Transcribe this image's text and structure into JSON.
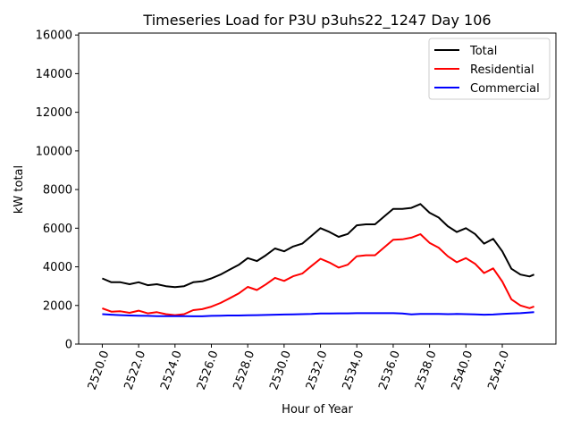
{
  "chart_data": {
    "type": "line",
    "title": "Timeseries Load for P3U p3uhs22_1247  Day 106",
    "xlabel": "Hour of Year",
    "ylabel": "kW total",
    "xlim": [
      2518.7,
      2544.95
    ],
    "ylim": [
      0,
      16100
    ],
    "xticks": [
      2520,
      2522,
      2524,
      2526,
      2528,
      2530,
      2532,
      2534,
      2536,
      2538,
      2540,
      2542
    ],
    "xtick_labels": [
      "2520.0",
      "2522.0",
      "2524.0",
      "2526.0",
      "2528.0",
      "2530.0",
      "2532.0",
      "2534.0",
      "2536.0",
      "2538.0",
      "2540.0",
      "2542.0"
    ],
    "yticks": [
      0,
      2000,
      4000,
      6000,
      8000,
      10000,
      12000,
      14000,
      16000
    ],
    "ytick_labels": [
      "0",
      "2000",
      "4000",
      "6000",
      "8000",
      "10000",
      "12000",
      "14000",
      "16000"
    ],
    "legend_position": "top-right",
    "x": [
      2520,
      2520.5,
      2521,
      2521.5,
      2522,
      2522.5,
      2523,
      2523.5,
      2524,
      2524.5,
      2525,
      2525.5,
      2526,
      2526.5,
      2527,
      2527.5,
      2528,
      2528.5,
      2529,
      2529.5,
      2530,
      2530.5,
      2531,
      2531.5,
      2532,
      2532.5,
      2533,
      2533.5,
      2534,
      2534.5,
      2535,
      2535.5,
      2536,
      2536.5,
      2537,
      2537.5,
      2538,
      2538.5,
      2539,
      2539.5,
      2540,
      2540.5,
      2541,
      2541.5,
      2542,
      2542.5,
      2543,
      2543.5,
      2543.75
    ],
    "series": [
      {
        "name": "Total",
        "color": "#000000",
        "values": [
          3400,
          3200,
          3200,
          3100,
          3200,
          3050,
          3100,
          3000,
          2950,
          3000,
          3200,
          3250,
          3400,
          3600,
          3850,
          4100,
          4450,
          4300,
          4600,
          4950,
          4800,
          5050,
          5200,
          5600,
          6000,
          5800,
          5550,
          5700,
          6150,
          6200,
          6200,
          6600,
          7000,
          7000,
          7050,
          7250,
          6800,
          6550,
          6100,
          5800,
          6000,
          5700,
          5200,
          5450,
          4800,
          3900,
          3600,
          3500,
          3600
        ]
      },
      {
        "name": "Residential",
        "color": "#ff0000",
        "values": [
          1850,
          1680,
          1700,
          1620,
          1730,
          1590,
          1650,
          1550,
          1500,
          1550,
          1760,
          1810,
          1940,
          2130,
          2370,
          2620,
          2960,
          2800,
          3090,
          3430,
          3270,
          3510,
          3650,
          4040,
          4420,
          4220,
          3960,
          4110,
          4550,
          4600,
          4600,
          5000,
          5400,
          5420,
          5510,
          5690,
          5240,
          4990,
          4550,
          4240,
          4450,
          4160,
          3680,
          3920,
          3240,
          2320,
          2000,
          1860,
          1950
        ]
      },
      {
        "name": "Commercial",
        "color": "#0000ff",
        "values": [
          1550,
          1520,
          1500,
          1480,
          1470,
          1460,
          1450,
          1450,
          1450,
          1450,
          1440,
          1440,
          1460,
          1470,
          1480,
          1480,
          1490,
          1500,
          1510,
          1520,
          1530,
          1540,
          1550,
          1560,
          1580,
          1580,
          1590,
          1590,
          1600,
          1600,
          1600,
          1600,
          1600,
          1580,
          1540,
          1560,
          1560,
          1560,
          1550,
          1560,
          1550,
          1540,
          1520,
          1530,
          1560,
          1580,
          1600,
          1640,
          1650
        ]
      }
    ]
  }
}
